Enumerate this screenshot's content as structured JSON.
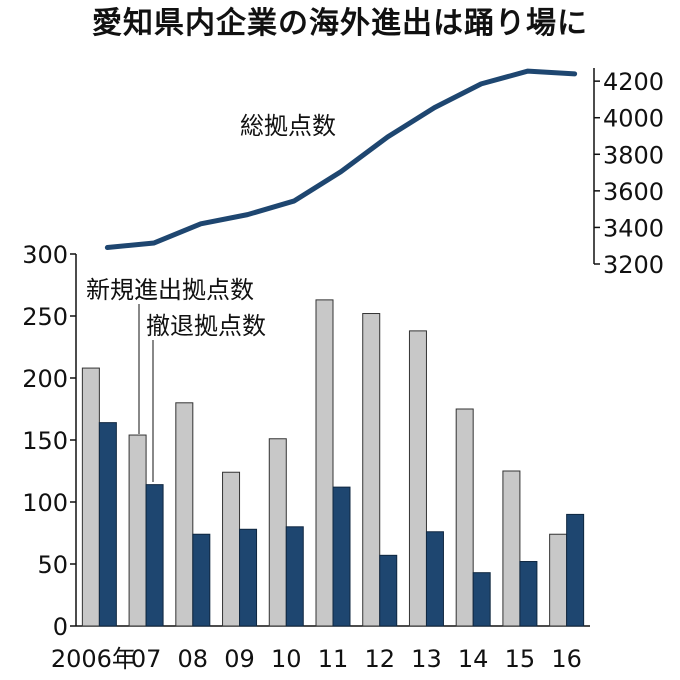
{
  "chart_data": {
    "type": "bar",
    "title": "愛知県内企業の海外進出は踊り場に",
    "categories": [
      "2006年",
      "07",
      "08",
      "09",
      "10",
      "11",
      "12",
      "13",
      "14",
      "15",
      "16"
    ],
    "series": [
      {
        "name": "新規進出拠点数",
        "type": "bar",
        "axis": "left",
        "color": "#c8c8c8",
        "values": [
          208,
          154,
          180,
          124,
          151,
          263,
          252,
          238,
          175,
          125,
          74
        ]
      },
      {
        "name": "撤退拠点数",
        "type": "bar",
        "axis": "left",
        "color": "#1e4670",
        "values": [
          164,
          114,
          74,
          78,
          80,
          112,
          57,
          76,
          43,
          52,
          90
        ]
      },
      {
        "name": "総拠点数",
        "type": "line",
        "axis": "right",
        "color": "#1e4670",
        "values": [
          3290,
          3315,
          3420,
          3470,
          3545,
          3705,
          3895,
          4055,
          4185,
          4255,
          4240
        ]
      }
    ],
    "y_left": {
      "min": 0,
      "max": 300,
      "ticks": [
        0,
        50,
        100,
        150,
        200,
        250,
        300
      ]
    },
    "y_right": {
      "min": 3200,
      "max": 4250,
      "ticks": [
        3200,
        3400,
        3600,
        3800,
        4000,
        4200
      ]
    },
    "grid": false,
    "legend": "inline labels"
  }
}
